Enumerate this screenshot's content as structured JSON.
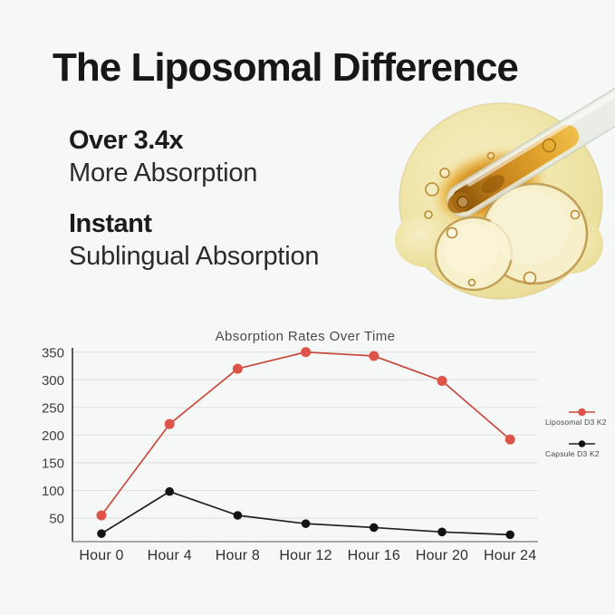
{
  "page": {
    "background_color": "#f6f7f7",
    "text_color": "#171717"
  },
  "header": {
    "title": "The Liposomal Difference"
  },
  "benefits": [
    {
      "strong": "Over 3.4x",
      "light": "More Absorption"
    },
    {
      "strong": "Instant",
      "light": "Sublingual Absorption"
    }
  ],
  "illustration": {
    "name": "oil-droplet-with-dropper",
    "blob_color": "#f0e6ac",
    "amber_color": "#c5821a",
    "glass_color": "#e9ece4"
  },
  "chart_data": {
    "type": "line",
    "title": "Absorption Rates Over Time",
    "categories": [
      "Hour 0",
      "Hour 4",
      "Hour 8",
      "Hour 12",
      "Hour 16",
      "Hour 20",
      "Hour 24"
    ],
    "series": [
      {
        "name": "Liposomal D3 K2",
        "color": "#c94c40",
        "marker_color": "#de5448",
        "values": [
          55,
          220,
          320,
          350,
          343,
          298,
          192
        ]
      },
      {
        "name": "Capsule D3 K2",
        "color": "#202020",
        "marker_color": "#131313",
        "values": [
          22,
          98,
          55,
          40,
          33,
          25,
          20
        ]
      }
    ],
    "xlabel": "",
    "ylabel": "",
    "ylim": [
      0,
      350
    ],
    "yticks": [
      50,
      100,
      150,
      200,
      250,
      300,
      350
    ],
    "grid": true,
    "legend_position": "right"
  }
}
